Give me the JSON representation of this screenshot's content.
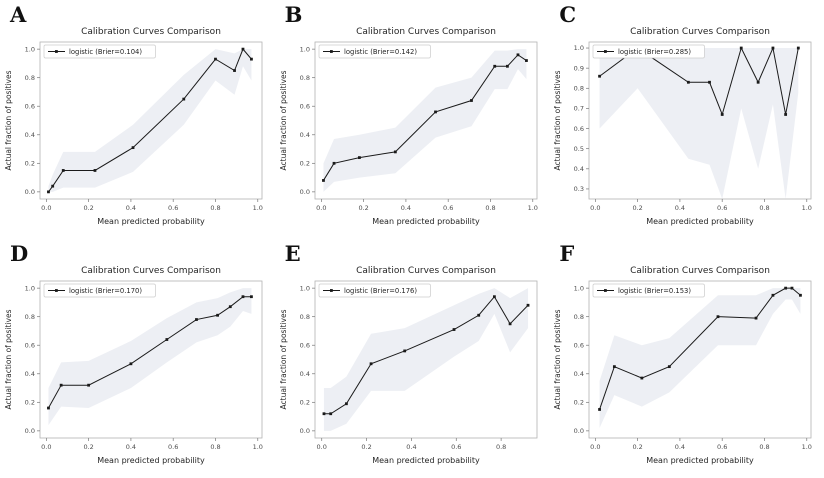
{
  "colors": {
    "line": "#1a1a1a",
    "marker": "#1a1a1a",
    "band": "#edeff4",
    "frame": "#b3b3b3",
    "tick": "#777777",
    "tick_label": "#4d4d4d",
    "text": "#262626",
    "legend_border": "#cccccc",
    "background": "#ffffff"
  },
  "chart_data": [
    {
      "label": "A",
      "type": "line",
      "title": "Calibration Curves Comparison",
      "xlabel": "Mean predicted probability",
      "ylabel": "Actual fraction of positives",
      "legend": "logistic (Brier=0.104)",
      "brier": 0.104,
      "x": [
        0.01,
        0.03,
        0.08,
        0.23,
        0.41,
        0.65,
        0.8,
        0.89,
        0.93,
        0.97
      ],
      "y": [
        0.0,
        0.04,
        0.15,
        0.15,
        0.31,
        0.65,
        0.93,
        0.85,
        1.0,
        0.93
      ],
      "band_lower": [
        0.0,
        0.0,
        0.03,
        0.03,
        0.14,
        0.47,
        0.78,
        0.68,
        0.88,
        0.78
      ],
      "band_upper": [
        0.04,
        0.12,
        0.28,
        0.28,
        0.47,
        0.82,
        1.0,
        0.97,
        1.0,
        1.0
      ],
      "xlim": [
        -0.03,
        1.02
      ],
      "ylim": [
        -0.05,
        1.05
      ],
      "x_ticks": [
        0.0,
        0.2,
        0.4,
        0.6,
        0.8,
        1.0
      ],
      "y_ticks": [
        0.0,
        0.2,
        0.4,
        0.6,
        0.8,
        1.0
      ]
    },
    {
      "label": "B",
      "type": "line",
      "title": "Calibration Curves Comparison",
      "xlabel": "Mean predicted probability",
      "ylabel": "Actual fraction of positives",
      "legend": "logistic (Brier=0.142)",
      "brier": 0.142,
      "x": [
        0.01,
        0.06,
        0.18,
        0.35,
        0.54,
        0.71,
        0.82,
        0.88,
        0.93,
        0.97
      ],
      "y": [
        0.08,
        0.2,
        0.24,
        0.28,
        0.56,
        0.64,
        0.88,
        0.88,
        0.96,
        0.92
      ],
      "band_lower": [
        0.0,
        0.07,
        0.1,
        0.13,
        0.38,
        0.46,
        0.72,
        0.72,
        0.86,
        0.79
      ],
      "band_upper": [
        0.2,
        0.37,
        0.4,
        0.45,
        0.73,
        0.8,
        0.99,
        0.99,
        1.0,
        1.0
      ],
      "xlim": [
        -0.03,
        1.02
      ],
      "ylim": [
        -0.05,
        1.05
      ],
      "x_ticks": [
        0.0,
        0.2,
        0.4,
        0.6,
        0.8,
        1.0
      ],
      "y_ticks": [
        0.0,
        0.2,
        0.4,
        0.6,
        0.8,
        1.0
      ]
    },
    {
      "label": "C",
      "type": "line",
      "title": "Calibration Curves Comparison",
      "xlabel": "Mean predicted probability",
      "ylabel": "Actual fraction of positives",
      "legend": "logistic (Brier=0.285)",
      "brier": 0.285,
      "x": [
        0.02,
        0.2,
        0.44,
        0.54,
        0.6,
        0.69,
        0.77,
        0.84,
        0.9,
        0.96
      ],
      "y": [
        0.86,
        1.0,
        0.83,
        0.83,
        0.67,
        1.0,
        0.83,
        1.0,
        0.67,
        1.0
      ],
      "band_lower": [
        0.6,
        0.8,
        0.45,
        0.42,
        0.25,
        0.7,
        0.4,
        0.72,
        0.25,
        0.78
      ],
      "band_upper": [
        1.0,
        1.0,
        1.0,
        1.0,
        1.0,
        1.0,
        1.0,
        1.0,
        1.0,
        1.0
      ],
      "xlim": [
        -0.03,
        1.02
      ],
      "ylim": [
        0.25,
        1.03
      ],
      "x_ticks": [
        0.0,
        0.2,
        0.4,
        0.6,
        0.8,
        1.0
      ],
      "y_ticks": [
        0.3,
        0.4,
        0.5,
        0.6,
        0.7,
        0.8,
        0.9,
        1.0
      ]
    },
    {
      "label": "D",
      "type": "line",
      "title": "Calibration Curves Comparison",
      "xlabel": "Mean predicted probability",
      "ylabel": "Actual fraction of positives",
      "legend": "logistic (Brier=0.170)",
      "brier": 0.17,
      "x": [
        0.01,
        0.07,
        0.2,
        0.4,
        0.57,
        0.71,
        0.81,
        0.87,
        0.93,
        0.97
      ],
      "y": [
        0.16,
        0.32,
        0.32,
        0.47,
        0.64,
        0.78,
        0.81,
        0.87,
        0.94,
        0.94
      ],
      "band_lower": [
        0.04,
        0.17,
        0.16,
        0.3,
        0.48,
        0.62,
        0.67,
        0.73,
        0.84,
        0.82
      ],
      "band_upper": [
        0.3,
        0.48,
        0.49,
        0.63,
        0.79,
        0.9,
        0.93,
        0.97,
        1.0,
        1.0
      ],
      "xlim": [
        -0.03,
        1.02
      ],
      "ylim": [
        -0.05,
        1.05
      ],
      "x_ticks": [
        0.0,
        0.2,
        0.4,
        0.6,
        0.8,
        1.0
      ],
      "y_ticks": [
        0.0,
        0.2,
        0.4,
        0.6,
        0.8,
        1.0
      ]
    },
    {
      "label": "E",
      "type": "line",
      "title": "Calibration Curves Comparison",
      "xlabel": "Mean predicted probability",
      "ylabel": "Actual fraction of positives",
      "legend": "logistic (Brier=0.176)",
      "brier": 0.176,
      "x": [
        0.01,
        0.04,
        0.11,
        0.22,
        0.37,
        0.59,
        0.7,
        0.77,
        0.84,
        0.92
      ],
      "y": [
        0.12,
        0.12,
        0.19,
        0.47,
        0.56,
        0.71,
        0.81,
        0.94,
        0.75,
        0.88
      ],
      "band_lower": [
        0.0,
        0.0,
        0.05,
        0.28,
        0.28,
        0.52,
        0.63,
        0.82,
        0.55,
        0.72
      ],
      "band_upper": [
        0.3,
        0.3,
        0.38,
        0.68,
        0.72,
        0.88,
        0.96,
        1.0,
        0.93,
        1.0
      ],
      "xlim": [
        -0.03,
        0.96
      ],
      "ylim": [
        -0.05,
        1.05
      ],
      "x_ticks": [
        0.0,
        0.2,
        0.4,
        0.6,
        0.8
      ],
      "y_ticks": [
        0.0,
        0.2,
        0.4,
        0.6,
        0.8,
        1.0
      ]
    },
    {
      "label": "F",
      "type": "line",
      "title": "Calibration Curves Comparison",
      "xlabel": "Mean predicted probability",
      "ylabel": "Actual fraction of positives",
      "legend": "logistic (Brier=0.153)",
      "brier": 0.153,
      "x": [
        0.02,
        0.09,
        0.22,
        0.35,
        0.58,
        0.76,
        0.84,
        0.9,
        0.93,
        0.97
      ],
      "y": [
        0.15,
        0.45,
        0.37,
        0.45,
        0.8,
        0.79,
        0.95,
        1.0,
        1.0,
        0.95
      ],
      "band_lower": [
        0.02,
        0.25,
        0.17,
        0.27,
        0.6,
        0.6,
        0.82,
        0.92,
        0.92,
        0.82
      ],
      "band_upper": [
        0.35,
        0.67,
        0.6,
        0.65,
        0.95,
        0.95,
        1.0,
        1.0,
        1.0,
        1.0
      ],
      "xlim": [
        -0.03,
        1.02
      ],
      "ylim": [
        -0.05,
        1.05
      ],
      "x_ticks": [
        0.0,
        0.2,
        0.4,
        0.6,
        0.8,
        1.0
      ],
      "y_ticks": [
        0.0,
        0.2,
        0.4,
        0.6,
        0.8,
        1.0
      ]
    }
  ]
}
